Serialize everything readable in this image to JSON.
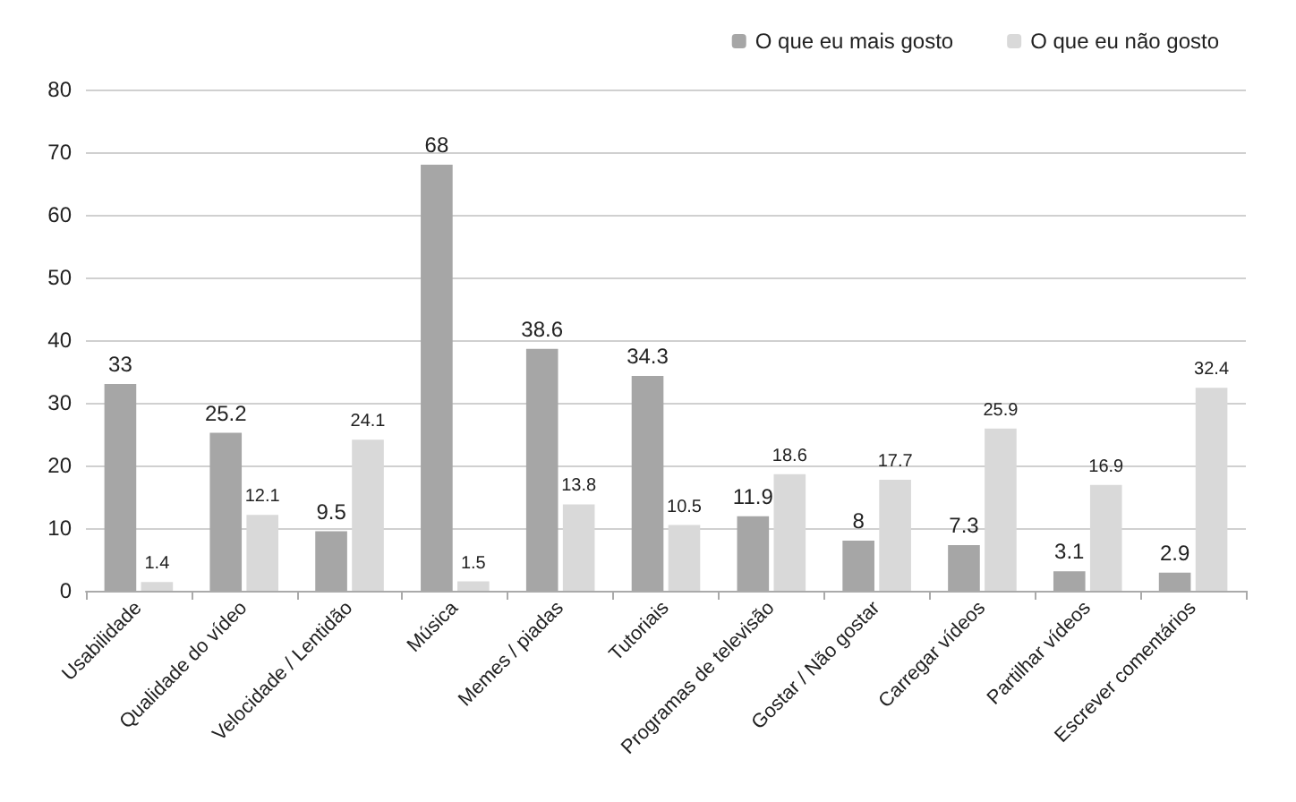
{
  "chart_data": {
    "type": "bar",
    "categories": [
      "Usabilidade",
      "Qualidade do vídeo",
      "Velocidade / Lentidão",
      "Música",
      "Memes / piadas",
      "Tutoriais",
      "Programas de televisão",
      "Gostar / Não gostar",
      "Carregar vídeos",
      "Partilhar vídeos",
      "Escrever comentários"
    ],
    "series": [
      {
        "name": "O que eu mais gosto",
        "color": "#a6a6a6",
        "values": [
          33,
          25.2,
          9.5,
          68,
          38.6,
          34.3,
          11.9,
          8,
          7.3,
          3.1,
          2.9
        ]
      },
      {
        "name": "O que eu não gosto",
        "color": "#d9d9d9",
        "values": [
          1.4,
          12.1,
          24.1,
          1.5,
          13.8,
          10.5,
          18.6,
          17.7,
          25.9,
          16.9,
          32.4
        ]
      }
    ],
    "ylim": [
      0,
      80
    ],
    "yticks": [
      0,
      10,
      20,
      30,
      40,
      50,
      60,
      70,
      80
    ],
    "grid": "y",
    "legend": "top right",
    "data_labels": true
  }
}
